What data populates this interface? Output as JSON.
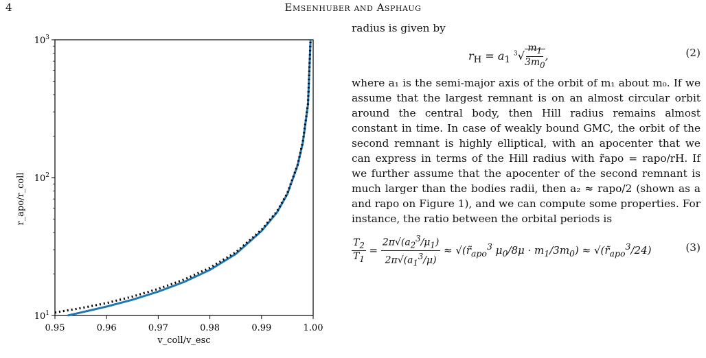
{
  "header": {
    "page_number": "4",
    "running_head": "Emsenhuber and Asphaug"
  },
  "chart_data": {
    "type": "line",
    "xlabel": "v_coll/v_esc",
    "ylabel": "r_apo/r_coll",
    "xlim": [
      0.95,
      1.0
    ],
    "ylim": [
      10,
      1000
    ],
    "yscale": "log",
    "x_ticks": [
      "0.95",
      "0.96",
      "0.97",
      "0.98",
      "0.99",
      "1.00"
    ],
    "y_ticks": [
      "10^1",
      "10^2",
      "10^3"
    ],
    "series": [
      {
        "style": "solid",
        "color": "#1f77b4",
        "x": [
          0.9525,
          0.955,
          0.96,
          0.965,
          0.97,
          0.975,
          0.98,
          0.985,
          0.99,
          0.993,
          0.995,
          0.997,
          0.998,
          0.999,
          0.9995
        ],
        "y": [
          10,
          10.5,
          11.6,
          13,
          14.9,
          17.5,
          21.4,
          27.9,
          41,
          56,
          76,
          123,
          180,
          340,
          1000
        ]
      },
      {
        "style": "dotted",
        "color": "#000000",
        "x": [
          0.95,
          0.955,
          0.96,
          0.965,
          0.97,
          0.975,
          0.98,
          0.985,
          0.99,
          0.993,
          0.995,
          0.997,
          0.998,
          0.999,
          0.9995
        ],
        "y": [
          10.5,
          11.3,
          12.3,
          13.7,
          15.6,
          18.2,
          22.2,
          28.7,
          41.8,
          57,
          77,
          124,
          182,
          345,
          1000
        ]
      }
    ]
  },
  "text": {
    "intro": "radius is given by",
    "eq2_number": "(2)",
    "para": "where a₁ is the semi-major axis of the orbit of m₁ about m₀. If we assume that the largest remnant is on an almost circular orbit around the central body, then Hill radius remains almost constant in time. In case of weakly bound GMC, the orbit of the second remnant is highly elliptical, with an apocenter that we can express in terms of the Hill radius with r̃apo = rapo/rH. If we further assume that the apocenter of the second remnant is much larger than the bodies radii, then a₂ ≈ rapo/2 (shown as a and rapo on Figure 1), and we can compute some properties. For instance, the ratio between the orbital periods is",
    "eq3_number": "(3)"
  }
}
